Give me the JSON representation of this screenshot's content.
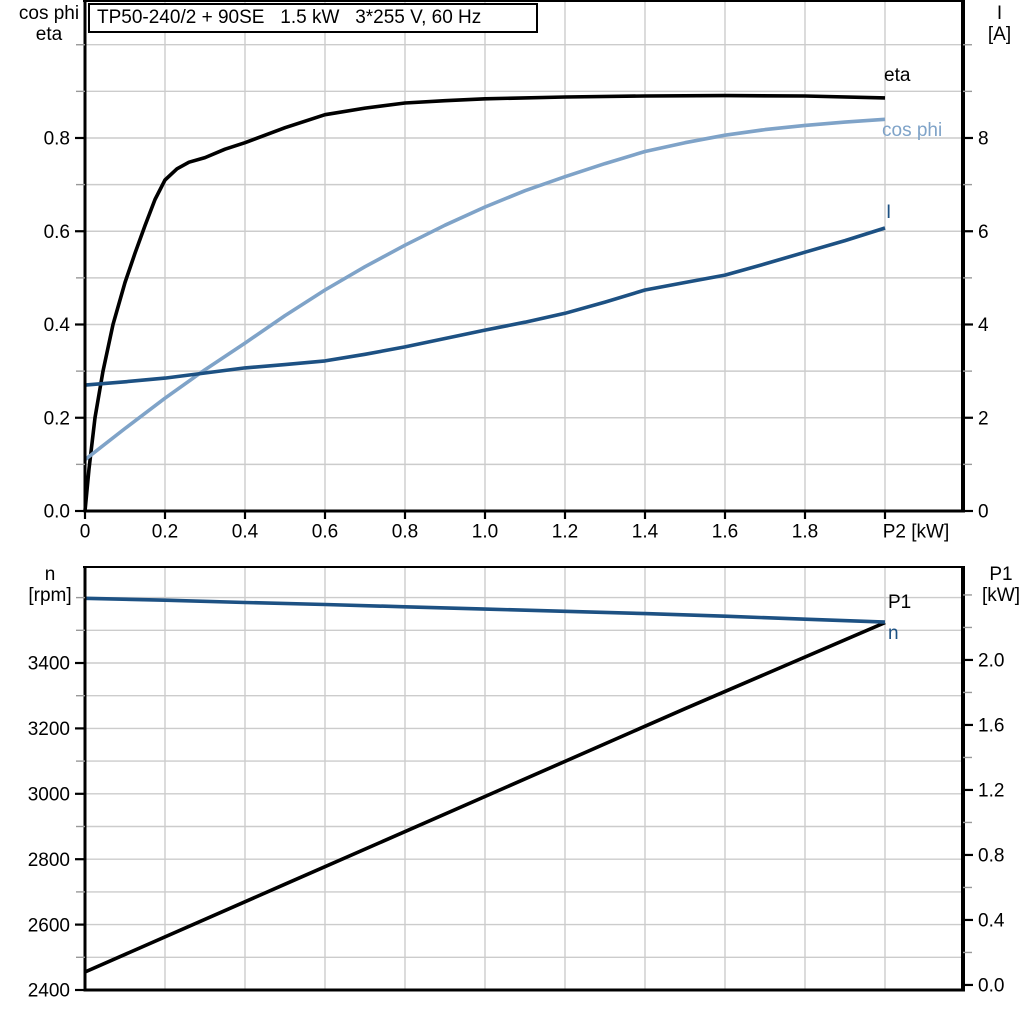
{
  "title": "TP50-240/2 + 90SE   1.5 kW   3*255 V, 60 Hz",
  "colors": {
    "curve_black": "#000000",
    "curve_dark_blue": "#1D5183",
    "curve_light_blue": "#7FA3C8",
    "grid": "#CCCCCC",
    "axis": "#000000",
    "minor_tick": "#999999",
    "text": "#000000"
  },
  "chart_data": [
    {
      "type": "line",
      "x_axis": {
        "label": "P2 [kW]",
        "range": [
          0,
          2.195
        ],
        "ticks": [
          {
            "v": 0,
            "t": "0"
          },
          {
            "v": 0.2,
            "t": "0.2"
          },
          {
            "v": 0.4,
            "t": "0.4"
          },
          {
            "v": 0.6,
            "t": "0.6"
          },
          {
            "v": 0.8,
            "t": "0.8"
          },
          {
            "v": 1,
            "t": "1.0"
          },
          {
            "v": 1.2,
            "t": "1.2"
          },
          {
            "v": 1.4,
            "t": "1.4"
          },
          {
            "v": 1.6,
            "t": "1.6"
          },
          {
            "v": 1.8,
            "t": "1.8"
          }
        ],
        "unlabeled_ticks": [
          2.0
        ],
        "grid": [
          0.2,
          0.4,
          0.6,
          0.8,
          1.0,
          1.2,
          1.4,
          1.6,
          1.8,
          2.0
        ]
      },
      "left_axis": {
        "label_lines": [
          "cos phi",
          "eta"
        ],
        "range": [
          0,
          1.0938
        ],
        "ticks": [
          {
            "v": 0,
            "t": "0.0"
          },
          {
            "v": 0.2,
            "t": "0.2"
          },
          {
            "v": 0.4,
            "t": "0.4"
          },
          {
            "v": 0.6,
            "t": "0.6"
          },
          {
            "v": 0.8,
            "t": "0.8"
          }
        ],
        "minor_ticks": [
          0.1,
          0.3,
          0.5,
          0.7,
          0.9,
          1.0
        ],
        "grid": [
          0.1,
          0.2,
          0.3,
          0.4,
          0.5,
          0.6,
          0.7,
          0.8,
          0.9,
          1.0
        ]
      },
      "right_axis": {
        "label_lines": [
          "I",
          "[A]"
        ],
        "range": [
          0,
          10.938
        ],
        "ticks": [
          {
            "v": 0,
            "t": "0"
          },
          {
            "v": 2,
            "t": "2"
          },
          {
            "v": 4,
            "t": "4"
          },
          {
            "v": 6,
            "t": "6"
          },
          {
            "v": 8,
            "t": "8"
          }
        ],
        "minor_ticks": [
          1,
          3,
          5,
          7,
          9,
          10
        ]
      },
      "series": [
        {
          "name": "eta",
          "axis": "left",
          "color_key": "curve_black",
          "points": [
            [
              0,
              0
            ],
            [
              0.01,
              0.09
            ],
            [
              0.025,
              0.2
            ],
            [
              0.045,
              0.3
            ],
            [
              0.07,
              0.4
            ],
            [
              0.1,
              0.49
            ],
            [
              0.125,
              0.553
            ],
            [
              0.15,
              0.612
            ],
            [
              0.175,
              0.668
            ],
            [
              0.2,
              0.71
            ],
            [
              0.23,
              0.734
            ],
            [
              0.26,
              0.748
            ],
            [
              0.3,
              0.758
            ],
            [
              0.35,
              0.776
            ],
            [
              0.4,
              0.79
            ],
            [
              0.5,
              0.822
            ],
            [
              0.6,
              0.85
            ],
            [
              0.7,
              0.864
            ],
            [
              0.8,
              0.875
            ],
            [
              0.9,
              0.88
            ],
            [
              1.0,
              0.884
            ],
            [
              1.2,
              0.888
            ],
            [
              1.4,
              0.89
            ],
            [
              1.6,
              0.891
            ],
            [
              1.8,
              0.89
            ],
            [
              2.0,
              0.886
            ]
          ]
        },
        {
          "name": "cos phi",
          "axis": "left",
          "color_key": "curve_light_blue",
          "points": [
            [
              0,
              0.11
            ],
            [
              0.1,
              0.177
            ],
            [
              0.2,
              0.242
            ],
            [
              0.3,
              0.303
            ],
            [
              0.4,
              0.36
            ],
            [
              0.5,
              0.419
            ],
            [
              0.6,
              0.474
            ],
            [
              0.7,
              0.524
            ],
            [
              0.8,
              0.57
            ],
            [
              0.9,
              0.613
            ],
            [
              1.0,
              0.652
            ],
            [
              1.1,
              0.687
            ],
            [
              1.2,
              0.717
            ],
            [
              1.3,
              0.745
            ],
            [
              1.4,
              0.771
            ],
            [
              1.5,
              0.79
            ],
            [
              1.6,
              0.806
            ],
            [
              1.7,
              0.818
            ],
            [
              1.8,
              0.827
            ],
            [
              1.9,
              0.834
            ],
            [
              2.0,
              0.84
            ]
          ]
        },
        {
          "name": "I",
          "axis": "right",
          "color_key": "curve_dark_blue",
          "points": [
            [
              0,
              2.7
            ],
            [
              0.1,
              2.77
            ],
            [
              0.2,
              2.85
            ],
            [
              0.3,
              2.96
            ],
            [
              0.4,
              3.07
            ],
            [
              0.5,
              3.14
            ],
            [
              0.6,
              3.22
            ],
            [
              0.7,
              3.36
            ],
            [
              0.8,
              3.52
            ],
            [
              0.9,
              3.7
            ],
            [
              1.0,
              3.88
            ],
            [
              1.1,
              4.05
            ],
            [
              1.2,
              4.24
            ],
            [
              1.3,
              4.48
            ],
            [
              1.4,
              4.74
            ],
            [
              1.5,
              4.9
            ],
            [
              1.6,
              5.06
            ],
            [
              1.7,
              5.3
            ],
            [
              1.8,
              5.55
            ],
            [
              1.9,
              5.8
            ],
            [
              2.0,
              6.07
            ]
          ]
        }
      ]
    },
    {
      "type": "line",
      "x_axis": {
        "label": "",
        "range": [
          0,
          2.195
        ],
        "ticks": [],
        "unlabeled_ticks": [],
        "grid": [
          0.2,
          0.4,
          0.6,
          0.8,
          1.0,
          1.2,
          1.4,
          1.6,
          1.8,
          2.0
        ]
      },
      "left_axis": {
        "label_lines": [
          "n",
          "[rpm]"
        ],
        "range": [
          2400,
          3693.6
        ],
        "ticks": [
          {
            "v": 2400,
            "t": "2400"
          },
          {
            "v": 2600,
            "t": "2600"
          },
          {
            "v": 2800,
            "t": "2800"
          },
          {
            "v": 3000,
            "t": "3000"
          },
          {
            "v": 3200,
            "t": "3200"
          },
          {
            "v": 3400,
            "t": "3400"
          }
        ],
        "minor_ticks": [
          2500,
          2700,
          2900,
          3100,
          3300,
          3500,
          3600
        ],
        "grid": [
          2500,
          2600,
          2700,
          2800,
          2900,
          3000,
          3100,
          3200,
          3300,
          3400,
          3500,
          3600
        ]
      },
      "right_axis": {
        "label_lines": [
          "P1",
          "[kW]"
        ],
        "range": [
          -0.031,
          2.572
        ],
        "ticks": [
          {
            "v": 0,
            "t": "0.0"
          },
          {
            "v": 0.4,
            "t": "0.4"
          },
          {
            "v": 0.8,
            "t": "0.8"
          },
          {
            "v": 1.2,
            "t": "1.2"
          },
          {
            "v": 1.6,
            "t": "1.6"
          },
          {
            "v": 2.0,
            "t": "2.0"
          }
        ],
        "minor_ticks": [
          0.2,
          0.6,
          1.0,
          1.4,
          1.8,
          2.2,
          2.4
        ]
      },
      "series": [
        {
          "name": "P1",
          "axis": "right",
          "color_key": "curve_black",
          "points": [
            [
              0,
              0.08
            ],
            [
              0.5,
              0.62
            ],
            [
              1.0,
              1.16
            ],
            [
              1.5,
              1.7
            ],
            [
              2.0,
              2.23
            ]
          ]
        },
        {
          "name": "n",
          "axis": "left",
          "color_key": "curve_dark_blue",
          "points": [
            [
              0,
              3598
            ],
            [
              0.2,
              3592
            ],
            [
              0.4,
              3585
            ],
            [
              0.6,
              3579
            ],
            [
              0.8,
              3572
            ],
            [
              1.0,
              3565
            ],
            [
              1.2,
              3558
            ],
            [
              1.4,
              3551
            ],
            [
              1.6,
              3543
            ],
            [
              1.8,
              3534
            ],
            [
              2.0,
              3525
            ]
          ]
        }
      ]
    }
  ]
}
